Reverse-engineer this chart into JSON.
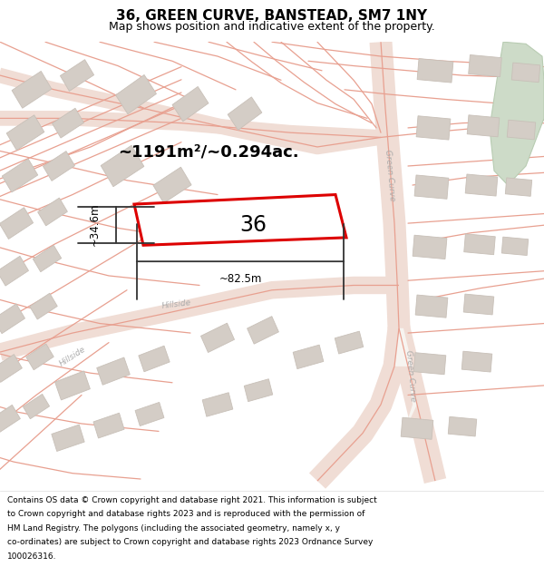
{
  "title": "36, GREEN CURVE, BANSTEAD, SM7 1NY",
  "subtitle": "Map shows position and indicative extent of the property.",
  "area_text": "~1191m²/~0.294ac.",
  "width_label": "~82.5m",
  "height_label": "~34.6m",
  "plot_number": "36",
  "bg_color": "#f7f4f0",
  "road_line_color": "#e8a090",
  "road_fill_color": "#f0ddd5",
  "building_color": "#d4cdc6",
  "building_edge": "#c8c0b8",
  "highlight_color": "#dd0000",
  "street_label_color": "#aaaaaa",
  "green_area_color": "#cddbc8",
  "green_area_edge": "#b8ccb2",
  "title_fontsize": 11,
  "subtitle_fontsize": 9,
  "footer_fontsize": 6.5,
  "footer_lines": [
    "Contains OS data © Crown copyright and database right 2021. This information is subject",
    "to Crown copyright and database rights 2023 and is reproduced with the permission of",
    "HM Land Registry. The polygons (including the associated geometry, namely x, y",
    "co-ordinates) are subject to Crown copyright and database rights 2023 Ordnance Survey",
    "100026316."
  ]
}
